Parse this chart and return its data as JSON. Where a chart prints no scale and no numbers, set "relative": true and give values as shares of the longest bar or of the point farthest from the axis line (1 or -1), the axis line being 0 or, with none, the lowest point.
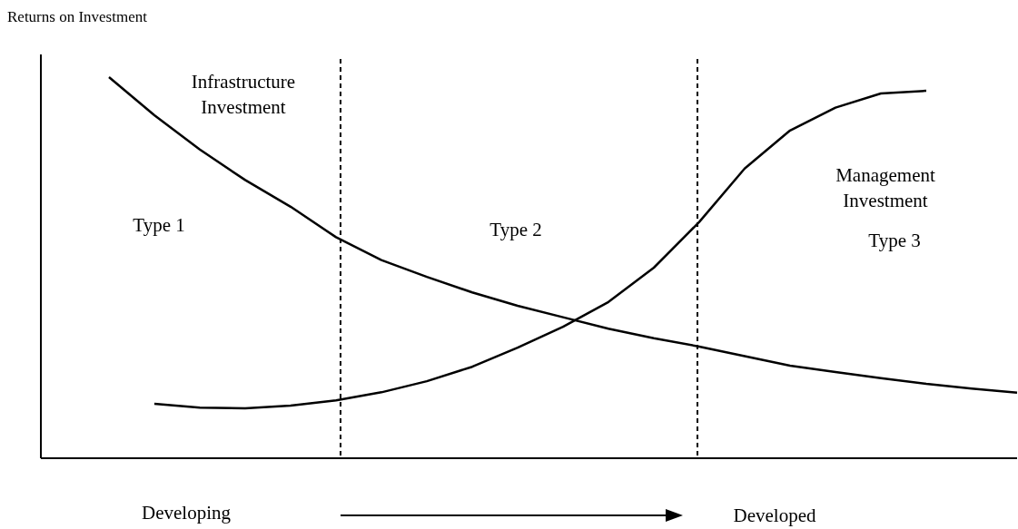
{
  "chart_data": {
    "type": "line",
    "relative": true,
    "ylabel": "Returns on Investment",
    "categories": [
      null,
      null,
      null,
      null,
      null,
      null,
      null,
      null,
      null,
      null,
      null,
      null,
      null,
      null,
      null,
      null,
      null,
      null,
      null,
      null,
      null
    ],
    "series": [
      {
        "color": "#000000",
        "values": [
          1,
          0.9,
          0.81,
          0.73,
          0.66,
          0.58,
          0.52,
          0.476,
          0.435,
          0.4,
          0.37,
          0.34,
          0.315,
          0.293,
          0.268,
          0.243,
          0.226,
          0.21,
          0.195,
          0.183,
          0.172
        ]
      },
      {
        "color": "#000000",
        "values": [
          null,
          0.143,
          0.133,
          0.131,
          0.138,
          0.152,
          0.173,
          0.202,
          0.24,
          0.29,
          0.345,
          0.41,
          0.5,
          0.62,
          0.76,
          0.86,
          0.92,
          0.957,
          0.964,
          null,
          null
        ]
      }
    ],
    "annotations": [
      "Infrastructure\nInvestment",
      "Type 1",
      "Type 2",
      "Management\nInvestment",
      "Type 3",
      "Developing",
      "Developed"
    ]
  }
}
